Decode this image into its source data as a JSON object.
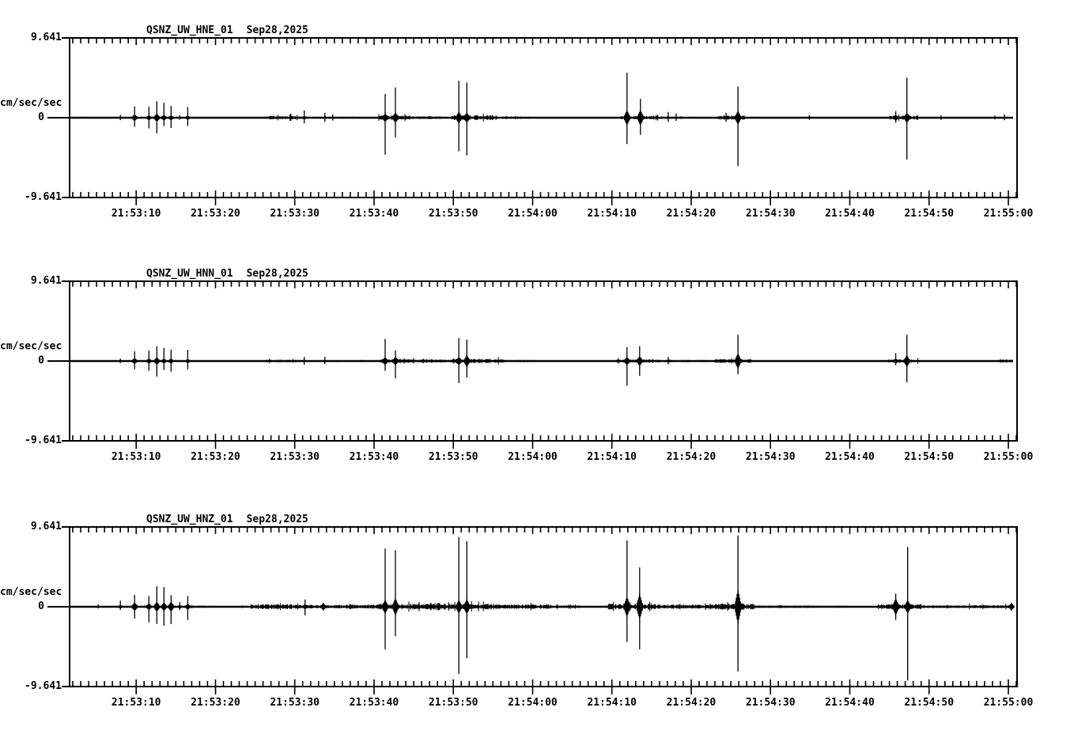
{
  "page": {
    "background": "#ffffff",
    "trace_color": "#000000"
  },
  "time_axis": {
    "tick_labels": [
      "21:53:10",
      "21:53:20",
      "21:53:30",
      "21:53:40",
      "21:53:50",
      "21:54:00",
      "21:54:10",
      "21:54:20",
      "21:54:30",
      "21:54:40",
      "21:54:50",
      "21:55:00"
    ],
    "tick_seconds": [
      10,
      20,
      30,
      40,
      50,
      60,
      70,
      80,
      90,
      100,
      110,
      120
    ],
    "minor_step_seconds": 1,
    "window_start_seconds": 1.6,
    "window_end_seconds": 121.1,
    "trace_end_seconds": 120.6
  },
  "panels": [
    {
      "id": "hne",
      "station": "QSNZ_UW_HNE_01",
      "date": "Sep28,2025",
      "units": "cm/sec/sec",
      "y_max_label": "9.641",
      "y_zero_label": "0",
      "y_min_label": "-9.641"
    },
    {
      "id": "hnn",
      "station": "QSNZ_UW_HNN_01",
      "date": "Sep28,2025",
      "units": "cm/sec/sec",
      "y_max_label": "9.641",
      "y_zero_label": "0",
      "y_min_label": "-9.641"
    },
    {
      "id": "hnz",
      "station": "QSNZ_UW_HNZ_01",
      "date": "Sep28,2025",
      "units": "cm/sec/sec",
      "y_max_label": "9.641",
      "y_zero_label": "0",
      "y_min_label": "-9.641"
    }
  ],
  "chart_data": [
    {
      "type": "line",
      "title": "QSNZ_UW_HNE_01  Sep28,2025",
      "ylabel": "cm/sec/sec",
      "ylim": [
        -9.641,
        9.641
      ],
      "x_window": [
        "21:53:02",
        "21:55:01"
      ],
      "x_tick_labels": [
        "21:53:10",
        "21:53:20",
        "21:53:30",
        "21:53:40",
        "21:53:50",
        "21:54:00",
        "21:54:10",
        "21:54:20",
        "21:54:30",
        "21:54:40",
        "21:54:50",
        "21:55:00"
      ],
      "spike_format": "[seconds_after_21:53:00, up_amp, down_amp, burst_halfheight] in cm/sec/sec",
      "spikes": [
        [
          8.0,
          0.35,
          0.3,
          0
        ],
        [
          9.8,
          1.4,
          1.1,
          0.4
        ],
        [
          11.6,
          1.35,
          1.3,
          0.3
        ],
        [
          12.6,
          2.0,
          1.9,
          0.5
        ],
        [
          13.5,
          1.8,
          1.0,
          0.35
        ],
        [
          14.4,
          1.45,
          1.25,
          0.3
        ],
        [
          15.5,
          0.3,
          0.25,
          0
        ],
        [
          16.5,
          1.3,
          1.0,
          0.25
        ],
        [
          29.5,
          0.5,
          0.4,
          0.15
        ],
        [
          31.2,
          0.9,
          0.7,
          0.2
        ],
        [
          33.8,
          0.6,
          0.5,
          0.15
        ],
        [
          34.8,
          0.4,
          0.35,
          0.1
        ],
        [
          41.4,
          2.9,
          4.5,
          0.5
        ],
        [
          42.7,
          3.7,
          2.4,
          0.6
        ],
        [
          50.7,
          4.5,
          4.1,
          0.7
        ],
        [
          51.7,
          4.3,
          4.6,
          0.6
        ],
        [
          71.9,
          5.5,
          3.2,
          0.9
        ],
        [
          73.6,
          2.3,
          2.1,
          0.9
        ],
        [
          77.1,
          0.7,
          0.5,
          0.15
        ],
        [
          78.1,
          0.5,
          0.4,
          0.1
        ],
        [
          84.4,
          0.6,
          0.5,
          0.15
        ],
        [
          85.9,
          3.8,
          5.9,
          0.8
        ],
        [
          94.9,
          0.3,
          0.25,
          0
        ],
        [
          105.8,
          0.8,
          0.6,
          0.35
        ],
        [
          107.2,
          4.9,
          5.1,
          0.6
        ],
        [
          111.5,
          0.3,
          0.25,
          0
        ],
        [
          118.3,
          0.25,
          0.2,
          0
        ],
        [
          119.5,
          0.4,
          0.3,
          0.1
        ]
      ],
      "noise_band_format": "[t_start_s, t_end_s, amp] in cm/sec/sec",
      "noise_bands": [
        [
          3.2,
          4.0,
          0.12
        ],
        [
          26.5,
          30.5,
          0.22
        ],
        [
          30.5,
          37.5,
          0.12
        ],
        [
          40.6,
          44.5,
          0.28
        ],
        [
          44.5,
          48.5,
          0.18
        ],
        [
          49.8,
          55.5,
          0.32
        ],
        [
          55.5,
          58.5,
          0.18
        ],
        [
          58.5,
          61.5,
          0.1
        ],
        [
          71.0,
          75.8,
          0.22
        ],
        [
          76.0,
          80.5,
          0.12
        ],
        [
          83.5,
          86.8,
          0.28
        ],
        [
          86.8,
          88.5,
          0.12
        ],
        [
          104.8,
          108.6,
          0.28
        ],
        [
          111.0,
          112.2,
          0.1
        ]
      ]
    },
    {
      "type": "line",
      "title": "QSNZ_UW_HNN_01  Sep28,2025",
      "ylabel": "cm/sec/sec",
      "ylim": [
        -9.641,
        9.641
      ],
      "x_window": [
        "21:53:02",
        "21:55:01"
      ],
      "x_tick_labels": [
        "21:53:10",
        "21:53:20",
        "21:53:30",
        "21:53:40",
        "21:53:50",
        "21:54:00",
        "21:54:10",
        "21:54:20",
        "21:54:30",
        "21:54:40",
        "21:54:50",
        "21:55:00"
      ],
      "spike_format": "[seconds_after_21:53:00, up_amp, down_amp, burst_halfheight] in cm/sec/sec",
      "spikes": [
        [
          8.0,
          0.3,
          0.25,
          0
        ],
        [
          9.8,
          1.2,
          1.0,
          0.35
        ],
        [
          11.6,
          1.3,
          1.2,
          0.3
        ],
        [
          12.6,
          1.8,
          1.9,
          0.45
        ],
        [
          13.5,
          1.6,
          1.1,
          0.3
        ],
        [
          14.4,
          1.4,
          1.3,
          0.3
        ],
        [
          16.5,
          1.35,
          1.0,
          0.25
        ],
        [
          31.2,
          0.5,
          0.45,
          0.15
        ],
        [
          33.8,
          0.5,
          0.4,
          0.15
        ],
        [
          41.4,
          2.7,
          1.2,
          0.45
        ],
        [
          42.7,
          1.3,
          2.1,
          0.5
        ],
        [
          50.7,
          2.8,
          2.7,
          0.5
        ],
        [
          51.7,
          2.6,
          2.0,
          0.7
        ],
        [
          71.9,
          1.7,
          3.0,
          0.5
        ],
        [
          73.5,
          1.8,
          1.8,
          0.6
        ],
        [
          77.1,
          0.5,
          0.4,
          0.12
        ],
        [
          85.9,
          3.2,
          1.6,
          0.9
        ],
        [
          105.8,
          0.95,
          0.5,
          0.3
        ],
        [
          107.2,
          3.2,
          2.6,
          0.7
        ]
      ],
      "noise_band_format": "[t_start_s, t_end_s, amp] in cm/sec/sec",
      "noise_bands": [
        [
          26.5,
          31.0,
          0.18
        ],
        [
          31.0,
          38.5,
          0.1
        ],
        [
          40.8,
          44.5,
          0.28
        ],
        [
          44.5,
          50.0,
          0.22
        ],
        [
          50.0,
          56.5,
          0.3
        ],
        [
          56.5,
          60.5,
          0.14
        ],
        [
          70.5,
          76.0,
          0.22
        ],
        [
          76.5,
          82.0,
          0.15
        ],
        [
          83.0,
          87.5,
          0.26
        ],
        [
          87.5,
          90.5,
          0.1
        ],
        [
          104.5,
          108.6,
          0.22
        ],
        [
          118.8,
          120.5,
          0.18
        ]
      ]
    },
    {
      "type": "line",
      "title": "QSNZ_UW_HNZ_01  Sep28,2025",
      "ylabel": "cm/sec/sec",
      "ylim": [
        -9.641,
        9.641
      ],
      "x_window": [
        "21:53:02",
        "21:55:01"
      ],
      "x_tick_labels": [
        "21:53:10",
        "21:53:20",
        "21:53:30",
        "21:53:40",
        "21:53:50",
        "21:54:00",
        "21:54:10",
        "21:54:20",
        "21:54:30",
        "21:54:40",
        "21:54:50",
        "21:55:00"
      ],
      "spike_format": "[seconds_after_21:53:00, up_amp, down_amp, burst_halfheight] in cm/sec/sec",
      "spikes": [
        [
          5.2,
          0.3,
          0.2,
          0
        ],
        [
          8.0,
          0.75,
          0.4,
          0.2
        ],
        [
          9.8,
          1.45,
          1.45,
          0.5
        ],
        [
          11.6,
          1.3,
          1.9,
          0.4
        ],
        [
          12.6,
          2.5,
          2.1,
          0.6
        ],
        [
          13.5,
          2.4,
          2.3,
          0.5
        ],
        [
          14.4,
          1.4,
          2.1,
          0.6
        ],
        [
          15.5,
          0.55,
          0.4,
          0.2
        ],
        [
          16.5,
          1.3,
          1.6,
          0.35
        ],
        [
          31.3,
          0.9,
          1.05,
          0.3
        ],
        [
          33.6,
          0.5,
          0.45,
          0.4
        ],
        [
          41.4,
          7.1,
          5.2,
          0.8
        ],
        [
          42.7,
          6.9,
          3.6,
          1.0
        ],
        [
          50.7,
          8.5,
          8.2,
          0.8
        ],
        [
          51.7,
          8.0,
          6.3,
          0.9
        ],
        [
          71.9,
          8.1,
          4.3,
          1.2
        ],
        [
          73.5,
          4.8,
          5.2,
          1.5
        ],
        [
          85.9,
          8.7,
          7.9,
          2.0
        ],
        [
          105.8,
          1.6,
          1.6,
          1.0
        ],
        [
          107.3,
          7.3,
          9.0,
          0.8
        ],
        [
          120.4,
          0.5,
          0.5,
          0.4
        ]
      ],
      "noise_band_format": "[t_start_s, t_end_s, amp] in cm/sec/sec",
      "noise_bands": [
        [
          8.5,
          17.0,
          0.12
        ],
        [
          17.0,
          19.5,
          0.15
        ],
        [
          21.0,
          24.5,
          0.1
        ],
        [
          24.5,
          30.5,
          0.32
        ],
        [
          30.5,
          36.5,
          0.22
        ],
        [
          36.5,
          40.5,
          0.28
        ],
        [
          40.5,
          46.8,
          0.38
        ],
        [
          46.8,
          49.0,
          0.5
        ],
        [
          49.0,
          56.0,
          0.38
        ],
        [
          56.0,
          62.0,
          0.28
        ],
        [
          62.0,
          66.0,
          0.18
        ],
        [
          66.5,
          69.5,
          0.1
        ],
        [
          69.5,
          75.5,
          0.38
        ],
        [
          75.5,
          83.0,
          0.28
        ],
        [
          83.0,
          88.0,
          0.42
        ],
        [
          88.0,
          95.0,
          0.18
        ],
        [
          95.0,
          100.0,
          0.13
        ],
        [
          103.5,
          109.0,
          0.32
        ],
        [
          109.0,
          115.0,
          0.18
        ],
        [
          115.0,
          120.6,
          0.22
        ]
      ]
    }
  ]
}
